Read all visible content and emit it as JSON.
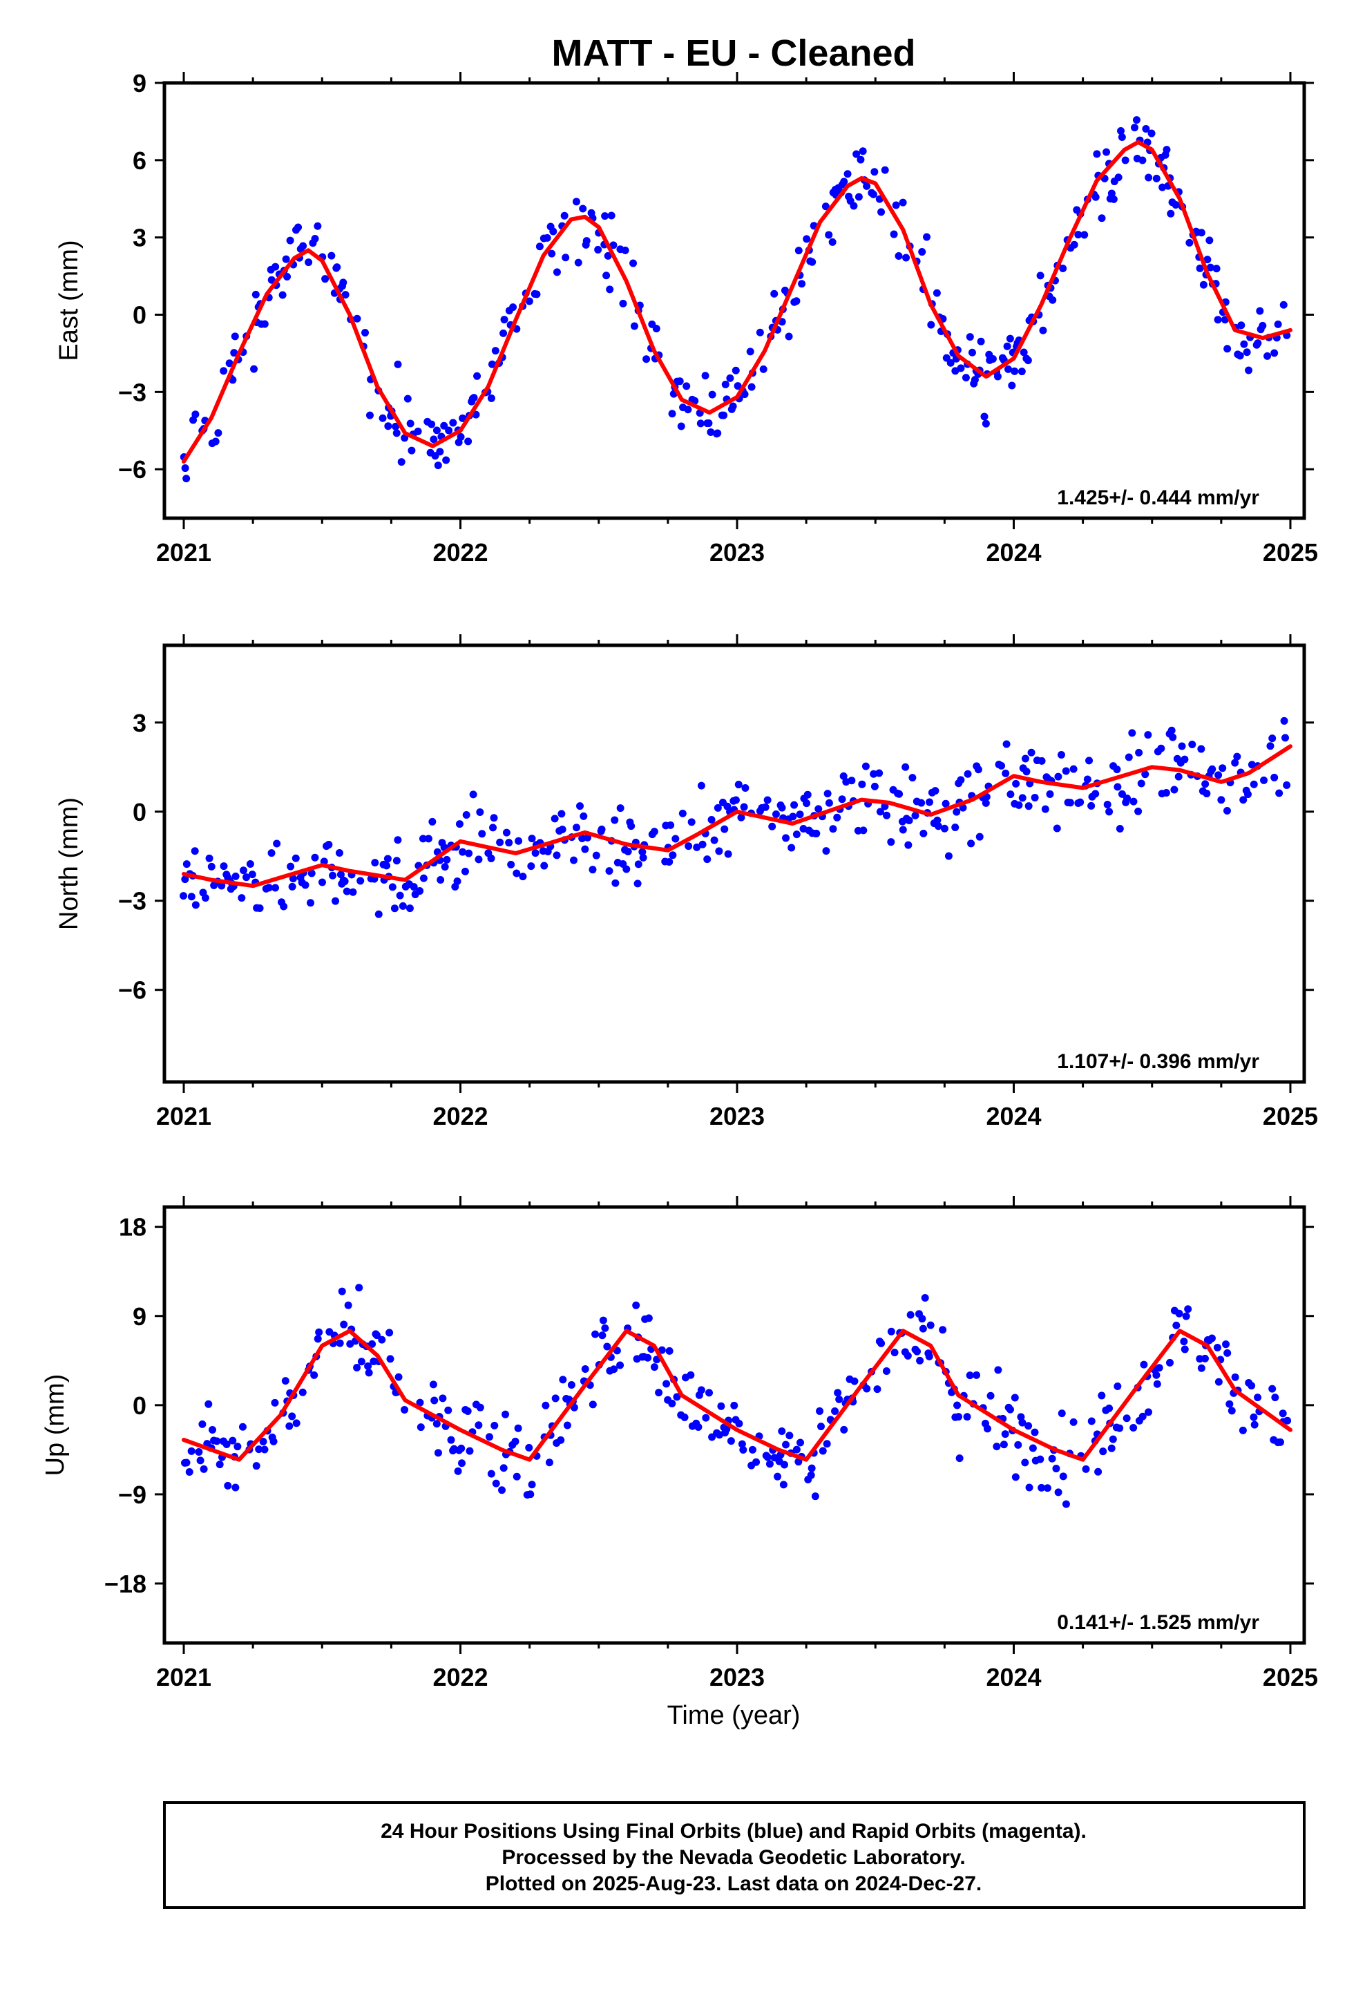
{
  "title": "MATT  - EU - Cleaned",
  "xlabel": "Time (year)",
  "colors": {
    "final_orbit_points": "#0000ff",
    "fit_curve": "#ff0000",
    "frame": "#000000"
  },
  "footer": {
    "line1": "24 Hour Positions Using Final Orbits (blue) and Rapid Orbits (magenta).",
    "line2": "Processed by the Nevada Geodetic Laboratory.",
    "line3": "Plotted on 2025-Aug-23. Last data on 2024-Dec-27."
  },
  "chart_data": [
    {
      "type": "scatter",
      "component": "east",
      "ylabel": "East (mm)",
      "xlim": [
        2020.93,
        2025.05
      ],
      "ylim": [
        -7.9,
        9.0
      ],
      "x_ticks": [
        2021,
        2022,
        2023,
        2024,
        2025
      ],
      "x_tick_labels": [
        "2021",
        "2022",
        "2023",
        "2024",
        "2025"
      ],
      "y_ticks": [
        -6,
        -3,
        0,
        3,
        6,
        9
      ],
      "y_tick_labels": [
        "−6",
        "−3",
        "0",
        "3",
        "6",
        "9"
      ],
      "rate_label": "1.425+/- 0.444 mm/yr",
      "rate": 1.425,
      "rate_sigma": 0.444,
      "points_description": "dense blue daily-position scatter around the red fit; annual amplitude about 4 mm",
      "fit_curve": {
        "x": [
          2021.0,
          2021.1,
          2021.2,
          2021.3,
          2021.4,
          2021.45,
          2021.5,
          2021.6,
          2021.7,
          2021.8,
          2021.9,
          2022.0,
          2022.1,
          2022.2,
          2022.3,
          2022.4,
          2022.45,
          2022.5,
          2022.6,
          2022.7,
          2022.8,
          2022.9,
          2023.0,
          2023.1,
          2023.2,
          2023.3,
          2023.4,
          2023.45,
          2023.5,
          2023.6,
          2023.7,
          2023.8,
          2023.9,
          2024.0,
          2024.1,
          2024.2,
          2024.3,
          2024.4,
          2024.45,
          2024.5,
          2024.6,
          2024.7,
          2024.8,
          2024.9,
          2025.0
        ],
        "y": [
          -5.7,
          -4.0,
          -1.5,
          0.8,
          2.2,
          2.5,
          2.1,
          0.0,
          -2.8,
          -4.6,
          -5.1,
          -4.5,
          -2.8,
          -0.2,
          2.3,
          3.7,
          3.8,
          3.4,
          1.3,
          -1.4,
          -3.3,
          -3.8,
          -3.2,
          -1.4,
          1.1,
          3.6,
          5.0,
          5.3,
          5.1,
          3.3,
          0.4,
          -1.6,
          -2.4,
          -1.7,
          0.4,
          2.9,
          5.2,
          6.4,
          6.7,
          6.4,
          4.5,
          1.6,
          -0.6,
          -0.9,
          -0.6
        ]
      }
    },
    {
      "type": "scatter",
      "component": "north",
      "ylabel": "North (mm)",
      "xlim": [
        2020.93,
        2025.05
      ],
      "ylim": [
        -9.1,
        5.6
      ],
      "x_ticks": [
        2021,
        2022,
        2023,
        2024,
        2025
      ],
      "x_tick_labels": [
        "2021",
        "2022",
        "2023",
        "2024",
        "2025"
      ],
      "y_ticks": [
        -6,
        -3,
        0,
        3
      ],
      "y_tick_labels": [
        "−6",
        "−3",
        "0",
        "3"
      ],
      "rate_label": "1.107+/- 0.396 mm/yr",
      "rate": 1.107,
      "rate_sigma": 0.396,
      "points_description": "blue daily-position scatter with slow northward trend and small seasonal wiggle",
      "fit_curve": {
        "x": [
          2021.0,
          2021.1,
          2021.25,
          2021.5,
          2021.6,
          2021.8,
          2022.0,
          2022.2,
          2022.45,
          2022.6,
          2022.75,
          2022.85,
          2023.0,
          2023.2,
          2023.45,
          2023.55,
          2023.7,
          2023.85,
          2024.0,
          2024.1,
          2024.25,
          2024.5,
          2024.6,
          2024.75,
          2024.85,
          2025.0
        ],
        "y": [
          -2.1,
          -2.3,
          -2.5,
          -1.8,
          -2.0,
          -2.3,
          -1.0,
          -1.4,
          -0.7,
          -1.1,
          -1.3,
          -0.8,
          0.0,
          -0.4,
          0.4,
          0.3,
          -0.1,
          0.4,
          1.2,
          1.0,
          0.8,
          1.5,
          1.4,
          1.0,
          1.3,
          2.2
        ]
      }
    },
    {
      "type": "scatter",
      "component": "up",
      "ylabel": "Up (mm)",
      "xlim": [
        2020.93,
        2025.05
      ],
      "ylim": [
        -24.0,
        20.0
      ],
      "x_ticks": [
        2021,
        2022,
        2023,
        2024,
        2025
      ],
      "x_tick_labels": [
        "2021",
        "2022",
        "2023",
        "2024",
        "2025"
      ],
      "y_ticks": [
        -18,
        -9,
        0,
        9,
        18
      ],
      "y_tick_labels": [
        "−18",
        "−9",
        "0",
        "9",
        "18"
      ],
      "rate_label": "0.141+/- 1.525 mm/yr",
      "rate": 0.141,
      "rate_sigma": 1.525,
      "points_description": "blue daily-position scatter with large annual cycle (amplitude about 6 mm) and heavy noise",
      "fit_curve": {
        "x": [
          2021.0,
          2021.1,
          2021.2,
          2021.35,
          2021.5,
          2021.6,
          2021.7,
          2021.8,
          2022.0,
          2022.15,
          2022.25,
          2022.45,
          2022.6,
          2022.7,
          2022.8,
          2023.0,
          2023.15,
          2023.25,
          2023.45,
          2023.6,
          2023.7,
          2023.8,
          2024.0,
          2024.15,
          2024.25,
          2024.45,
          2024.6,
          2024.7,
          2024.8,
          2025.0
        ],
        "y": [
          -3.5,
          -4.5,
          -5.5,
          -1.0,
          6.0,
          7.5,
          5.0,
          0.5,
          -2.5,
          -4.5,
          -5.5,
          2.0,
          7.5,
          6.0,
          1.0,
          -2.5,
          -4.5,
          -5.5,
          2.0,
          7.5,
          6.0,
          1.0,
          -2.5,
          -4.5,
          -5.5,
          2.0,
          7.5,
          6.0,
          1.5,
          -2.5
        ]
      }
    }
  ]
}
